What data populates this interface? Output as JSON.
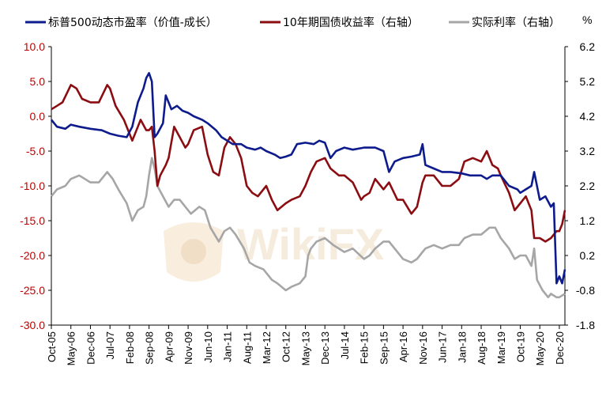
{
  "chart_data": {
    "type": "line",
    "title": "",
    "legend_position": "top",
    "right_axis_unit": "%",
    "watermark": "WikiFX",
    "x_ticks": [
      "Oct-05",
      "May-06",
      "Dec-06",
      "Jul-07",
      "Feb-08",
      "Sep-08",
      "Apr-09",
      "Nov-09",
      "Jun-10",
      "Jan-11",
      "Aug-11",
      "Mar-12",
      "Oct-12",
      "May-13",
      "Dec-13",
      "Jul-14",
      "Feb-15",
      "Sep-15",
      "Apr-16",
      "Nov-16",
      "Jun-17",
      "Jan-18",
      "Aug-18",
      "Mar-19",
      "Oct-19",
      "May-20",
      "Dec-20"
    ],
    "x_range": [
      "Oct-05",
      "Feb-21"
    ],
    "y_left": {
      "range": [
        -30,
        10
      ],
      "ticks": [
        "10.0",
        "5.0",
        "0.0",
        "-5.0",
        "-10.0",
        "-15.0",
        "-20.0",
        "-25.0",
        "-30.0"
      ],
      "tick_color": "#c00000"
    },
    "y_right": {
      "range": [
        -1.8,
        6.2
      ],
      "ticks": [
        "6.2",
        "5.2",
        "4.2",
        "3.2",
        "2.2",
        "1.2",
        "0.2",
        "-0.8",
        "-1.8"
      ]
    },
    "grid": false,
    "series": [
      {
        "name": "标普500动态市盈率（价值-成长）",
        "axis": "left",
        "color": "#0d1b8c",
        "points": [
          [
            "Oct-05",
            -0.5
          ],
          [
            "Dec-05",
            -1.5
          ],
          [
            "Mar-06",
            -1.8
          ],
          [
            "May-06",
            -1.2
          ],
          [
            "Aug-06",
            -1.5
          ],
          [
            "Dec-06",
            -1.8
          ],
          [
            "Apr-07",
            -2.0
          ],
          [
            "Jul-07",
            -2.5
          ],
          [
            "Oct-07",
            -2.8
          ],
          [
            "Jan-08",
            -3.0
          ],
          [
            "Mar-08",
            -1.5
          ],
          [
            "May-08",
            2.0
          ],
          [
            "Jul-08",
            4.0
          ],
          [
            "Aug-08",
            5.5
          ],
          [
            "Sep-08",
            6.2
          ],
          [
            "Oct-08",
            5.0
          ],
          [
            "Nov-08",
            -3.0
          ],
          [
            "Dec-08",
            -2.5
          ],
          [
            "Feb-09",
            -1.0
          ],
          [
            "Mar-09",
            3.0
          ],
          [
            "Apr-09",
            2.0
          ],
          [
            "May-09",
            1.0
          ],
          [
            "Jul-09",
            1.5
          ],
          [
            "Sep-09",
            0.8
          ],
          [
            "Nov-09",
            0.5
          ],
          [
            "Jan-10",
            0.0
          ],
          [
            "Apr-10",
            -0.5
          ],
          [
            "Jun-10",
            -1.0
          ],
          [
            "Sep-10",
            -2.0
          ],
          [
            "Nov-10",
            -3.0
          ],
          [
            "Jan-11",
            -3.5
          ],
          [
            "Mar-11",
            -4.0
          ],
          [
            "Jun-11",
            -4.0
          ],
          [
            "Aug-11",
            -4.5
          ],
          [
            "Nov-11",
            -4.8
          ],
          [
            "Jan-12",
            -4.5
          ],
          [
            "Mar-12",
            -5.0
          ],
          [
            "Jun-12",
            -5.5
          ],
          [
            "Aug-12",
            -6.0
          ],
          [
            "Oct-12",
            -5.8
          ],
          [
            "Dec-12",
            -5.5
          ],
          [
            "Feb-13",
            -4.0
          ],
          [
            "May-13",
            -3.8
          ],
          [
            "Aug-13",
            -4.0
          ],
          [
            "Oct-13",
            -3.5
          ],
          [
            "Dec-13",
            -3.8
          ],
          [
            "Feb-14",
            -6.0
          ],
          [
            "Apr-14",
            -5.0
          ],
          [
            "Jul-14",
            -4.5
          ],
          [
            "Oct-14",
            -4.8
          ],
          [
            "Feb-15",
            -4.5
          ],
          [
            "Jun-15",
            -4.5
          ],
          [
            "Sep-15",
            -5.0
          ],
          [
            "Nov-15",
            -8.0
          ],
          [
            "Jan-16",
            -6.5
          ],
          [
            "Apr-16",
            -6.0
          ],
          [
            "Jul-16",
            -5.8
          ],
          [
            "Oct-16",
            -5.5
          ],
          [
            "Nov-16",
            -4.0
          ],
          [
            "Dec-16",
            -7.0
          ],
          [
            "Mar-17",
            -7.5
          ],
          [
            "Jun-17",
            -8.0
          ],
          [
            "Sep-17",
            -8.0
          ],
          [
            "Jan-18",
            -8.2
          ],
          [
            "Apr-18",
            -8.5
          ],
          [
            "Aug-18",
            -8.5
          ],
          [
            "Oct-18",
            -9.0
          ],
          [
            "Dec-18",
            -8.5
          ],
          [
            "Mar-19",
            -8.5
          ],
          [
            "Jun-19",
            -10.0
          ],
          [
            "Sep-19",
            -10.5
          ],
          [
            "Oct-19",
            -11.0
          ],
          [
            "Dec-19",
            -10.5
          ],
          [
            "Feb-20",
            -10.0
          ],
          [
            "Mar-20",
            -8.0
          ],
          [
            "May-20",
            -12.0
          ],
          [
            "Jul-20",
            -11.5
          ],
          [
            "Sep-20",
            -13.0
          ],
          [
            "Oct-20",
            -12.5
          ],
          [
            "Nov-20",
            -24.0
          ],
          [
            "Dec-20",
            -23.0
          ],
          [
            "Jan-21",
            -24.0
          ],
          [
            "Feb-21",
            -22.0
          ]
        ]
      },
      {
        "name": "10年期国债收益率（右轴）",
        "axis": "right",
        "color": "#8b0d12",
        "points": [
          [
            "Oct-05",
            4.4
          ],
          [
            "Dec-05",
            4.5
          ],
          [
            "Feb-06",
            4.6
          ],
          [
            "May-06",
            5.1
          ],
          [
            "Jul-06",
            5.0
          ],
          [
            "Sep-06",
            4.7
          ],
          [
            "Dec-06",
            4.6
          ],
          [
            "Mar-07",
            4.6
          ],
          [
            "Jun-07",
            5.1
          ],
          [
            "Jul-07",
            5.0
          ],
          [
            "Sep-07",
            4.5
          ],
          [
            "Dec-07",
            4.1
          ],
          [
            "Feb-08",
            3.7
          ],
          [
            "Mar-08",
            3.5
          ],
          [
            "May-08",
            3.9
          ],
          [
            "Jun-08",
            4.1
          ],
          [
            "Aug-08",
            3.8
          ],
          [
            "Sep-08",
            3.8
          ],
          [
            "Oct-08",
            3.9
          ],
          [
            "Nov-08",
            3.2
          ],
          [
            "Dec-08",
            2.2
          ],
          [
            "Jan-09",
            2.5
          ],
          [
            "Mar-09",
            2.8
          ],
          [
            "Apr-09",
            3.0
          ],
          [
            "Jun-09",
            3.9
          ],
          [
            "Aug-09",
            3.6
          ],
          [
            "Oct-09",
            3.3
          ],
          [
            "Nov-09",
            3.4
          ],
          [
            "Jan-10",
            3.8
          ],
          [
            "Apr-10",
            3.9
          ],
          [
            "Jun-10",
            3.1
          ],
          [
            "Aug-10",
            2.6
          ],
          [
            "Oct-10",
            2.5
          ],
          [
            "Dec-10",
            3.3
          ],
          [
            "Feb-11",
            3.6
          ],
          [
            "Apr-11",
            3.4
          ],
          [
            "Jun-11",
            3.0
          ],
          [
            "Aug-11",
            2.2
          ],
          [
            "Oct-11",
            2.0
          ],
          [
            "Dec-11",
            1.9
          ],
          [
            "Mar-12",
            2.2
          ],
          [
            "May-12",
            1.8
          ],
          [
            "Jul-12",
            1.5
          ],
          [
            "Oct-12",
            1.7
          ],
          [
            "Dec-12",
            1.8
          ],
          [
            "Mar-13",
            1.9
          ],
          [
            "May-13",
            2.2
          ],
          [
            "Jul-13",
            2.6
          ],
          [
            "Sep-13",
            2.9
          ],
          [
            "Dec-13",
            3.0
          ],
          [
            "Feb-14",
            2.7
          ],
          [
            "May-14",
            2.5
          ],
          [
            "Jul-14",
            2.5
          ],
          [
            "Oct-14",
            2.3
          ],
          [
            "Jan-15",
            1.8
          ],
          [
            "Feb-15",
            1.9
          ],
          [
            "Apr-15",
            2.0
          ],
          [
            "Jun-15",
            2.4
          ],
          [
            "Sep-15",
            2.1
          ],
          [
            "Nov-15",
            2.3
          ],
          [
            "Feb-16",
            1.8
          ],
          [
            "Apr-16",
            1.8
          ],
          [
            "Jul-16",
            1.4
          ],
          [
            "Sep-16",
            1.6
          ],
          [
            "Nov-16",
            2.3
          ],
          [
            "Dec-16",
            2.5
          ],
          [
            "Mar-17",
            2.5
          ],
          [
            "Jun-17",
            2.2
          ],
          [
            "Sep-17",
            2.2
          ],
          [
            "Dec-17",
            2.4
          ],
          [
            "Feb-18",
            2.9
          ],
          [
            "May-18",
            3.0
          ],
          [
            "Aug-18",
            2.9
          ],
          [
            "Oct-18",
            3.2
          ],
          [
            "Dec-18",
            2.8
          ],
          [
            "Feb-19",
            2.7
          ],
          [
            "Mar-19",
            2.5
          ],
          [
            "Jun-19",
            2.0
          ],
          [
            "Aug-19",
            1.5
          ],
          [
            "Oct-19",
            1.7
          ],
          [
            "Dec-19",
            1.9
          ],
          [
            "Feb-20",
            1.5
          ],
          [
            "Mar-20",
            0.7
          ],
          [
            "May-20",
            0.7
          ],
          [
            "Jul-20",
            0.6
          ],
          [
            "Sep-20",
            0.7
          ],
          [
            "Nov-20",
            0.9
          ],
          [
            "Dec-20",
            0.9
          ],
          [
            "Jan-21",
            1.1
          ],
          [
            "Feb-21",
            1.5
          ]
        ]
      },
      {
        "name": "实际利率（右轴）",
        "axis": "right",
        "color": "#a6a6a6",
        "points": [
          [
            "Oct-05",
            1.9
          ],
          [
            "Dec-05",
            2.1
          ],
          [
            "Mar-06",
            2.2
          ],
          [
            "May-06",
            2.4
          ],
          [
            "Aug-06",
            2.5
          ],
          [
            "Oct-06",
            2.4
          ],
          [
            "Dec-06",
            2.3
          ],
          [
            "Mar-07",
            2.3
          ],
          [
            "Jun-07",
            2.6
          ],
          [
            "Aug-07",
            2.4
          ],
          [
            "Oct-07",
            2.1
          ],
          [
            "Jan-08",
            1.7
          ],
          [
            "Mar-08",
            1.2
          ],
          [
            "May-08",
            1.5
          ],
          [
            "Jul-08",
            1.6
          ],
          [
            "Aug-08",
            1.9
          ],
          [
            "Sep-08",
            2.5
          ],
          [
            "Oct-08",
            3.0
          ],
          [
            "Nov-08",
            2.7
          ],
          [
            "Dec-08",
            2.2
          ],
          [
            "Feb-09",
            1.9
          ],
          [
            "Apr-09",
            1.6
          ],
          [
            "Jun-09",
            1.8
          ],
          [
            "Aug-09",
            1.8
          ],
          [
            "Oct-09",
            1.6
          ],
          [
            "Dec-09",
            1.4
          ],
          [
            "Mar-10",
            1.6
          ],
          [
            "May-10",
            1.5
          ],
          [
            "Jul-10",
            1.0
          ],
          [
            "Oct-10",
            0.6
          ],
          [
            "Dec-10",
            0.9
          ],
          [
            "Feb-11",
            1.0
          ],
          [
            "Apr-11",
            0.8
          ],
          [
            "Jul-11",
            0.4
          ],
          [
            "Sep-11",
            0.0
          ],
          [
            "Nov-11",
            -0.1
          ],
          [
            "Feb-12",
            -0.2
          ],
          [
            "May-12",
            -0.5
          ],
          [
            "Jul-12",
            -0.6
          ],
          [
            "Oct-12",
            -0.8
          ],
          [
            "Dec-12",
            -0.7
          ],
          [
            "Mar-13",
            -0.6
          ],
          [
            "May-13",
            -0.4
          ],
          [
            "Jun-13",
            0.2
          ],
          [
            "Jul-13",
            0.4
          ],
          [
            "Sep-13",
            0.6
          ],
          [
            "Dec-13",
            0.7
          ],
          [
            "Mar-14",
            0.5
          ],
          [
            "Jul-14",
            0.3
          ],
          [
            "Oct-14",
            0.4
          ],
          [
            "Feb-15",
            0.1
          ],
          [
            "Apr-15",
            0.2
          ],
          [
            "Jun-15",
            0.4
          ],
          [
            "Sep-15",
            0.6
          ],
          [
            "Nov-15",
            0.6
          ],
          [
            "Feb-16",
            0.3
          ],
          [
            "Apr-16",
            0.1
          ],
          [
            "Jul-16",
            -0.0
          ],
          [
            "Sep-16",
            0.1
          ],
          [
            "Nov-16",
            0.3
          ],
          [
            "Dec-16",
            0.4
          ],
          [
            "Mar-17",
            0.5
          ],
          [
            "Jun-17",
            0.4
          ],
          [
            "Sep-17",
            0.5
          ],
          [
            "Dec-17",
            0.5
          ],
          [
            "Feb-18",
            0.7
          ],
          [
            "May-18",
            0.8
          ],
          [
            "Aug-18",
            0.8
          ],
          [
            "Nov-18",
            1.0
          ],
          [
            "Jan-19",
            1.0
          ],
          [
            "Mar-19",
            0.7
          ],
          [
            "Jun-19",
            0.4
          ],
          [
            "Aug-19",
            0.1
          ],
          [
            "Oct-19",
            0.2
          ],
          [
            "Dec-19",
            0.2
          ],
          [
            "Feb-20",
            -0.1
          ],
          [
            "Mar-20",
            0.4
          ],
          [
            "Apr-20",
            -0.5
          ],
          [
            "Jun-20",
            -0.8
          ],
          [
            "Aug-20",
            -1.0
          ],
          [
            "Sep-20",
            -0.9
          ],
          [
            "Nov-20",
            -1.0
          ],
          [
            "Dec-20",
            -1.0
          ],
          [
            "Feb-21",
            -0.9
          ]
        ]
      }
    ]
  }
}
